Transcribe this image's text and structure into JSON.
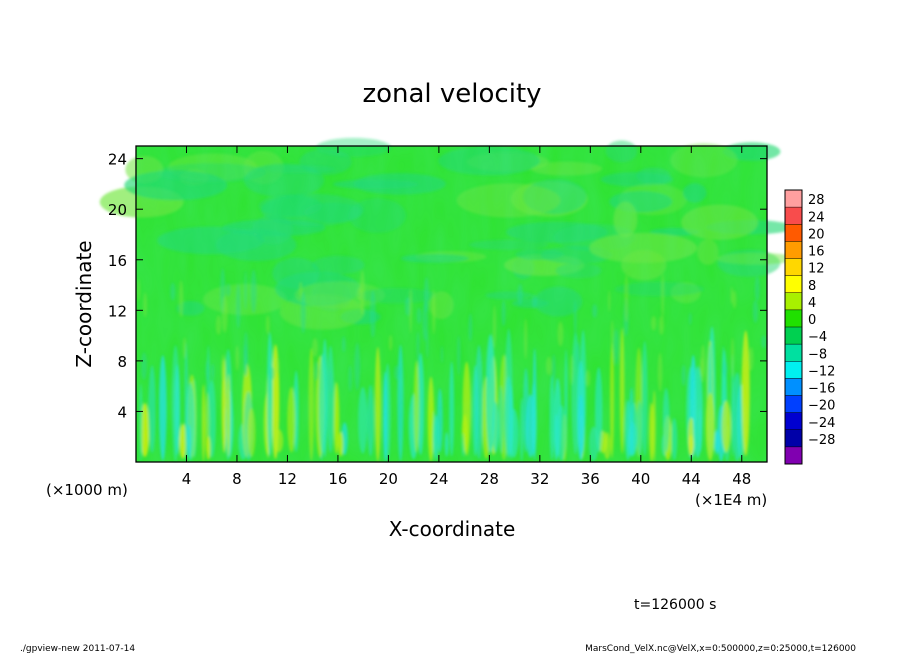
{
  "chart_data": {
    "type": "heatmap",
    "title": "zonal velocity",
    "xlabel": "X-coordinate",
    "ylabel": "Z-coordinate",
    "x_unit_left": "(×1000 m)",
    "x_unit_right": "(×1E4 m)",
    "xlim": [
      0,
      50
    ],
    "ylim": [
      0,
      25
    ],
    "x_ticks": [
      "4",
      "8",
      "12",
      "16",
      "20",
      "24",
      "28",
      "32",
      "36",
      "40",
      "44",
      "48"
    ],
    "y_ticks": [
      "4",
      "8",
      "12",
      "16",
      "20",
      "24"
    ],
    "colorbar": {
      "labels": [
        "28",
        "24",
        "20",
        "16",
        "12",
        "8",
        "4",
        "0",
        "−4",
        "−8",
        "−12",
        "−16",
        "−20",
        "−24",
        "−28"
      ],
      "colors": [
        "#ff9f9f",
        "#f84c4c",
        "#ff5a00",
        "#ff9c00",
        "#ffd700",
        "#ffff00",
        "#a8f000",
        "#20e000",
        "#00d050",
        "#00e0a0",
        "#00f0f0",
        "#0090ff",
        "#0040ff",
        "#0000d0",
        "#0000a8",
        "#8000b0"
      ]
    },
    "grid": false,
    "legend": "colorbar at right"
  },
  "annotations": {
    "time": "t=126000 s",
    "footer_left": "./gpview-new   2011-07-14",
    "footer_right": "MarsCond_VelX.nc@VelX,x=0:500000,z=0:25000,t=126000"
  }
}
